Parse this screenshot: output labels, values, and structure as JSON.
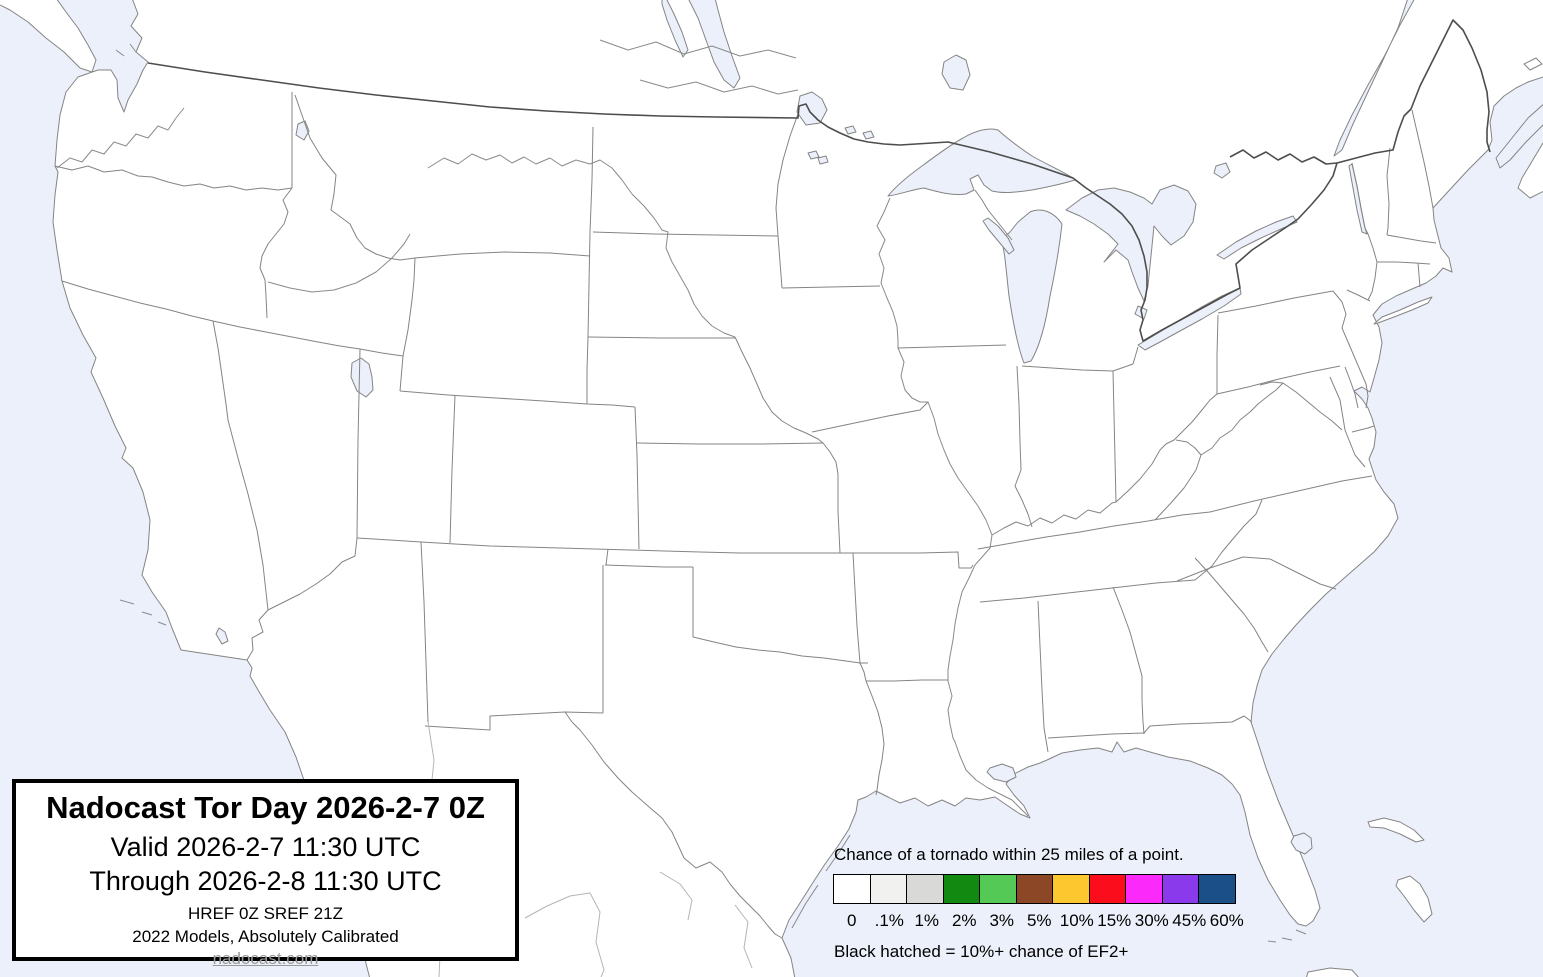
{
  "title_box": {
    "product_title": "Nadocast Tor Day 2026-2-7 0Z",
    "valid_line": "Valid 2026-2-7 11:30 UTC",
    "through_line": "Through 2026-2-8 11:30 UTC",
    "models_line": "HREF 0Z SREF 21Z",
    "calibration_line": "2022 Models, Absolutely Calibrated",
    "website": "nadocast.com"
  },
  "legend": {
    "title": "Chance of a tornado within 25 miles of a point.",
    "note": "Black hatched = 10%+ chance of EF2+",
    "items": [
      {
        "label": "0",
        "color": "#ffffff"
      },
      {
        "label": ".1%",
        "color": "#f1f1ef"
      },
      {
        "label": "1%",
        "color": "#d9d9d7"
      },
      {
        "label": "2%",
        "color": "#128a12"
      },
      {
        "label": "3%",
        "color": "#55c955"
      },
      {
        "label": "5%",
        "color": "#8b4726"
      },
      {
        "label": "10%",
        "color": "#fdc82f"
      },
      {
        "label": "15%",
        "color": "#fb0d1b"
      },
      {
        "label": "30%",
        "color": "#fb2afb"
      },
      {
        "label": "45%",
        "color": "#8b3aeb"
      },
      {
        "label": "60%",
        "color": "#1b4f87"
      }
    ]
  },
  "colors": {
    "water": "#ecf0fa",
    "land": "#ffffff",
    "state_border": "#848484",
    "country_border": "#4d4d4d",
    "mexico_border": "#b5b5b5"
  }
}
